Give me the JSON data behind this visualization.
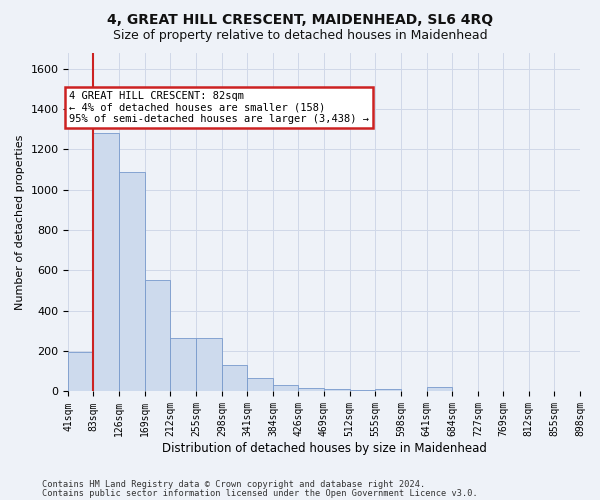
{
  "title": "4, GREAT HILL CRESCENT, MAIDENHEAD, SL6 4RQ",
  "subtitle": "Size of property relative to detached houses in Maidenhead",
  "xlabel": "Distribution of detached houses by size in Maidenhead",
  "ylabel": "Number of detached properties",
  "footnote1": "Contains HM Land Registry data © Crown copyright and database right 2024.",
  "footnote2": "Contains public sector information licensed under the Open Government Licence v3.0.",
  "annotation_title": "4 GREAT HILL CRESCENT: 82sqm",
  "annotation_line2": "← 4% of detached houses are smaller (158)",
  "annotation_line3": "95% of semi-detached houses are larger (3,438) →",
  "property_size": 82,
  "bar_color": "#cddaed",
  "bar_edge_color": "#7799cc",
  "vline_color": "#cc2222",
  "grid_color": "#d0d8e8",
  "background_color": "#eef2f8",
  "annotation_box_color": "#ffffff",
  "annotation_box_edge": "#cc2222",
  "ylim": [
    0,
    1680
  ],
  "yticks": [
    0,
    200,
    400,
    600,
    800,
    1000,
    1200,
    1400,
    1600
  ],
  "bin_edges": [
    41,
    83,
    126,
    169,
    212,
    255,
    298,
    341,
    384,
    426,
    469,
    512,
    555,
    598,
    641,
    684,
    727,
    769,
    812,
    855,
    898
  ],
  "bin_labels": [
    "41sqm",
    "83sqm",
    "126sqm",
    "169sqm",
    "212sqm",
    "255sqm",
    "298sqm",
    "341sqm",
    "384sqm",
    "426sqm",
    "469sqm",
    "512sqm",
    "555sqm",
    "598sqm",
    "641sqm",
    "684sqm",
    "727sqm",
    "769sqm",
    "812sqm",
    "855sqm",
    "898sqm"
  ],
  "bar_heights": [
    196,
    1280,
    1090,
    550,
    265,
    265,
    130,
    65,
    30,
    15,
    10,
    5,
    10,
    0,
    22,
    0,
    0,
    0,
    0,
    0
  ]
}
